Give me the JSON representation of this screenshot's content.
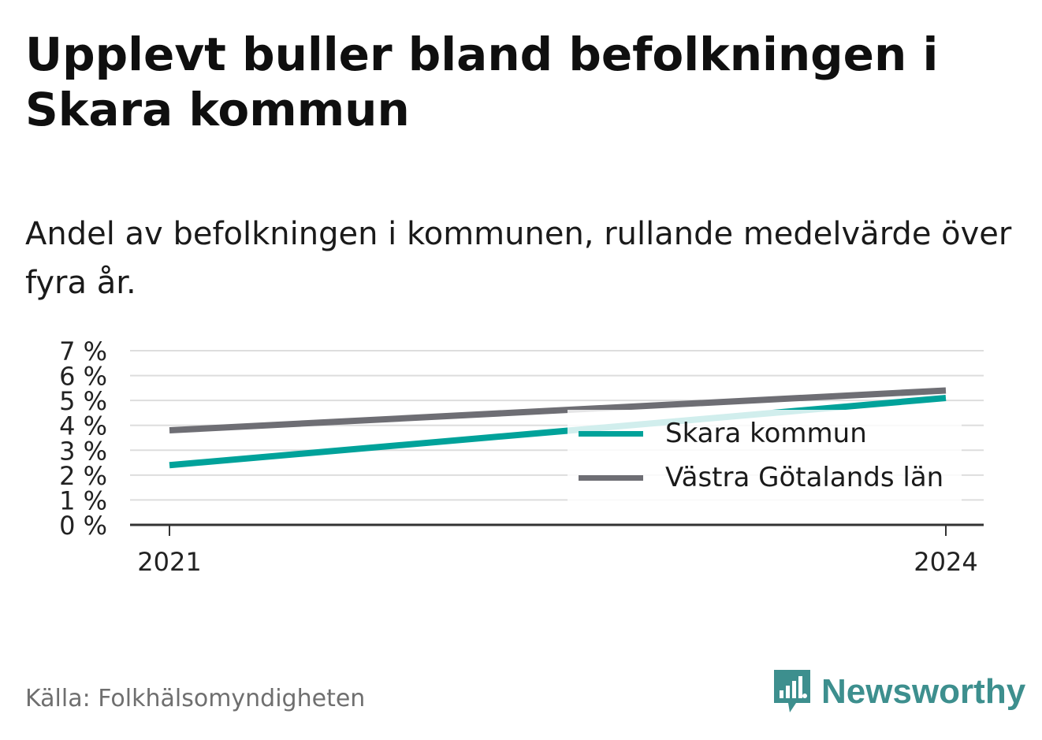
{
  "title": "Upplevt buller bland befolkningen i Skara kommun",
  "subtitle": "Andel av befolkningen i kommunen, rullande medelvärde över fyra år.",
  "source": "Källa: Folkhälsomyndigheten",
  "brand": {
    "name": "Newsworthy",
    "icon": "newsworthy-logo-icon",
    "color": "#3d8f8e"
  },
  "colors": {
    "skara": "#00a29a",
    "vastra": "#6e6e74",
    "grid": "#dddddd",
    "axis": "#333333"
  },
  "chart_data": {
    "type": "line",
    "x": [
      "2021",
      "2024"
    ],
    "x_ticks": [
      "2021",
      "2024"
    ],
    "y_ticks": [
      "0 %",
      "1 %",
      "2 %",
      "3 %",
      "4 %",
      "5 %",
      "6 %",
      "7 %"
    ],
    "ylim": [
      0,
      7
    ],
    "grid": true,
    "legend_position": "right",
    "series": [
      {
        "name": "Skara kommun",
        "values": [
          2.4,
          5.1
        ],
        "color": "#00a29a"
      },
      {
        "name": "Västra Götalands län",
        "values": [
          3.8,
          5.4
        ],
        "color": "#6e6e74"
      }
    ]
  }
}
